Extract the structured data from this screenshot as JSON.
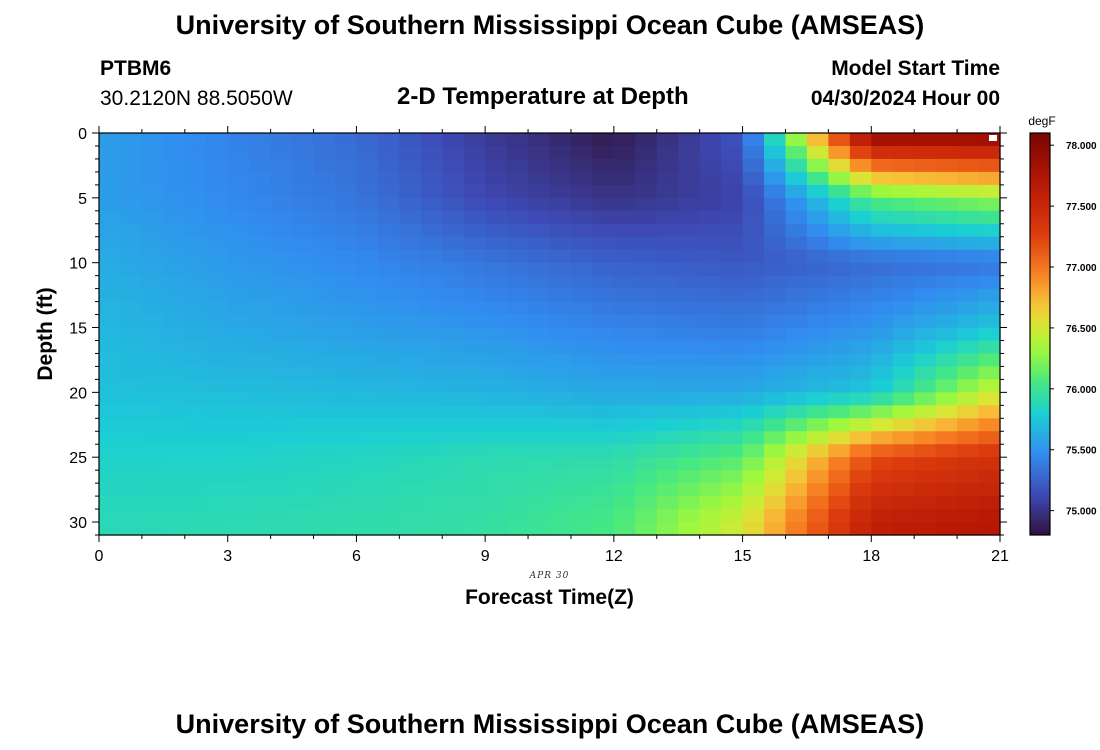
{
  "header": {
    "title": "University of Southern Mississippi Ocean Cube (AMSEAS)",
    "station": "PTBM6",
    "coordinates": "30.2120N  88.5050W",
    "plot_title": "2-D Temperature at Depth",
    "model_start_label": "Model Start Time",
    "model_start_value": "04/30/2024 Hour 00"
  },
  "footer": {
    "title": "University of Southern Mississippi Ocean Cube (AMSEAS)"
  },
  "chart_data": {
    "type": "heatmap",
    "title": "2-D Temperature at Depth",
    "xlabel": "Forecast Time(Z)",
    "ylabel": "Depth (ft)",
    "x_date_label": "APR  30",
    "xlim": [
      0,
      21
    ],
    "ylim": [
      31,
      0
    ],
    "x_ticks": [
      0,
      3,
      6,
      9,
      12,
      15,
      18,
      21
    ],
    "x_tick_labels": [
      "0",
      "3",
      "6",
      "9",
      "12",
      "15",
      "18",
      "21"
    ],
    "y_ticks": [
      0,
      5,
      10,
      15,
      20,
      25,
      30
    ],
    "y_tick_labels": [
      "0",
      "5",
      "10",
      "15",
      "20",
      "25",
      "30"
    ],
    "colorbar": {
      "unit": "degF",
      "range": [
        74.8,
        78.1
      ],
      "ticks": [
        75.0,
        75.5,
        76.0,
        76.5,
        77.0,
        77.5,
        78.0
      ],
      "tick_labels": [
        "75.000",
        "75.500",
        "76.000",
        "76.500",
        "77.000",
        "77.500",
        "78.000"
      ],
      "colormap": "turbo"
    },
    "time_hours": [
      0,
      3,
      6,
      9,
      12,
      15,
      18,
      21
    ],
    "depth_ft": [
      0,
      5,
      10,
      15,
      20,
      25,
      30
    ],
    "values_degF": [
      [
        75.55,
        75.42,
        75.3,
        75.05,
        74.85,
        75.2,
        78.0,
        78.0
      ],
      [
        75.55,
        75.45,
        75.35,
        75.12,
        75.0,
        75.1,
        76.1,
        76.3
      ],
      [
        75.62,
        75.53,
        75.45,
        75.35,
        75.25,
        75.2,
        75.3,
        75.35
      ],
      [
        75.68,
        75.6,
        75.55,
        75.5,
        75.42,
        75.38,
        75.5,
        75.75
      ],
      [
        75.72,
        75.7,
        75.68,
        75.65,
        75.6,
        75.6,
        75.75,
        76.5
      ],
      [
        75.82,
        75.82,
        75.85,
        75.9,
        75.92,
        76.1,
        77.2,
        77.4
      ],
      [
        75.88,
        75.9,
        75.92,
        75.95,
        76.05,
        76.5,
        77.6,
        77.7
      ]
    ]
  }
}
